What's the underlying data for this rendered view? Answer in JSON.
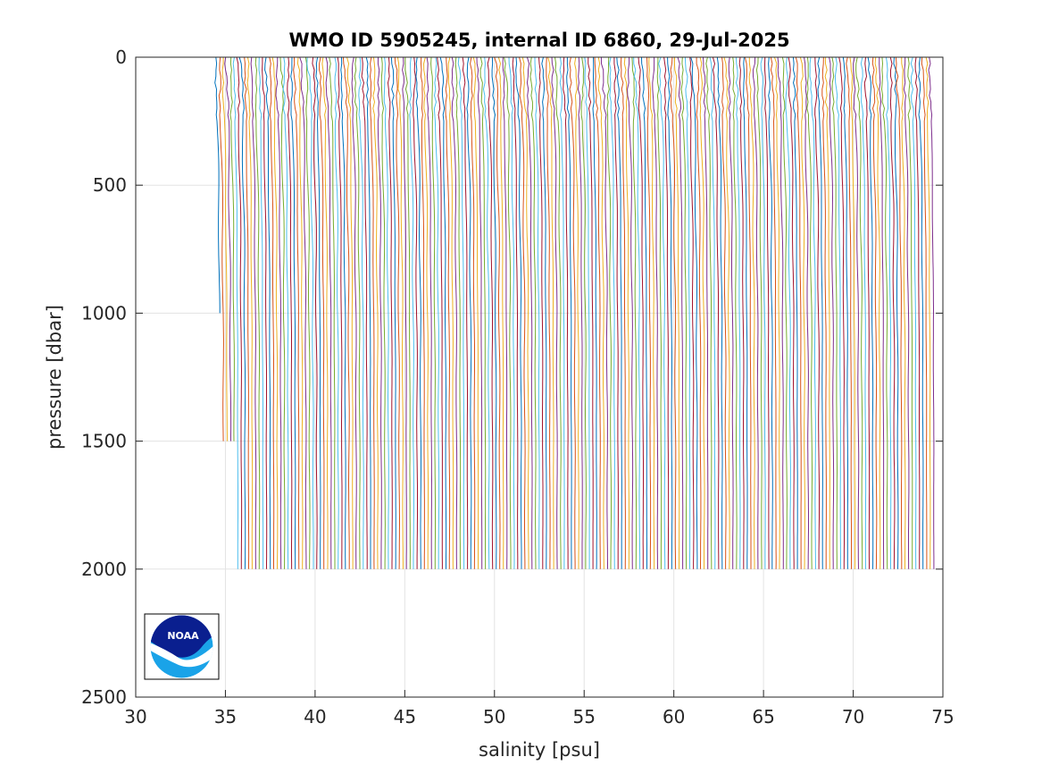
{
  "chart_data": {
    "type": "line",
    "title": "WMO ID 5905245, internal ID 6860, 29-Jul-2025",
    "xlabel": "salinity [psu]",
    "ylabel": "pressure [dbar]",
    "xlim": [
      30,
      75
    ],
    "ylim": [
      0,
      2500
    ],
    "y_reversed": true,
    "grid": true,
    "xticks": [
      "30",
      "35",
      "40",
      "45",
      "50",
      "55",
      "60",
      "65",
      "70",
      "75"
    ],
    "yticks": [
      "0",
      "500",
      "1000",
      "1500",
      "2000",
      "2500"
    ],
    "profiles": {
      "count": 200,
      "first_deep_salinity": 34.7,
      "offset_per_profile": 0.2,
      "surface_salinity_freshening": 0.25,
      "max_pressure": 2000,
      "first_profile_max_pressure": 1000,
      "note": ""
    },
    "series_colors": [
      "#0072BD",
      "#D95319",
      "#EDB120",
      "#7E2F8E",
      "#77AC30",
      "#4DBEEE",
      "#A2142F"
    ]
  },
  "logo": {
    "name": "noaa-logo",
    "text": "NOAA",
    "colors": {
      "top": "#0a1f8f",
      "bottom": "#1aa3e8",
      "white": "#ffffff"
    }
  }
}
